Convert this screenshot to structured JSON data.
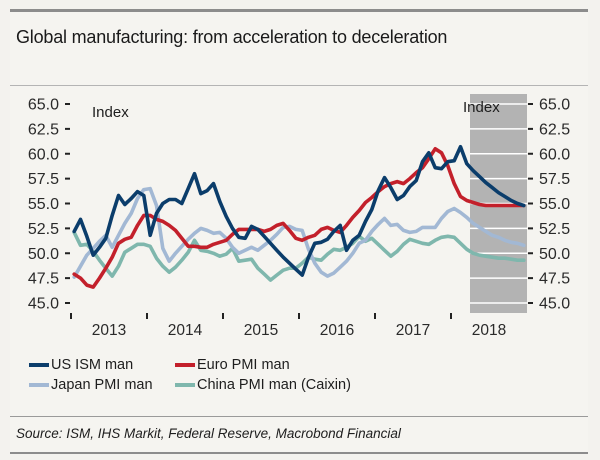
{
  "header": {
    "title": "Global manufacturing: from acceleration to deceleration"
  },
  "source": "Source: ISM, IHS Markit, Federal Reserve, Macrobond Financial",
  "colors": {
    "us_ism": "#0b3d6b",
    "euro_pmi": "#c3202b",
    "japan_pmi": "#a2b8d4",
    "china_pmi": "#7fb7ad",
    "shading": "#b3b3b3",
    "gridline": "#ffffff",
    "background": "#f5f4f0"
  },
  "chart_data": {
    "type": "line",
    "title": "Global manufacturing: from acceleration to deceleration",
    "frequency": "monthly",
    "x_start": "2013-01",
    "x_end": "2018-12",
    "xtick_labels": [
      "2013",
      "2014",
      "2015",
      "2016",
      "2017",
      "2018"
    ],
    "xlabel": "",
    "y_left_label": "Index",
    "y_right_label": "Index",
    "ylim": [
      45,
      65
    ],
    "yticks": [
      65.0,
      62.5,
      60.0,
      57.5,
      55.0,
      52.5,
      50.0,
      47.5,
      45.0
    ],
    "ytick_labels": [
      "65.0",
      "62.5",
      "60.0",
      "57.5",
      "55.0",
      "52.5",
      "50.0",
      "47.5",
      "45.0"
    ],
    "grid": false,
    "shaded_period": {
      "start": "2018-04",
      "end": "2018-12"
    },
    "legend_position": "bottom-left",
    "series": [
      {
        "name": "US ISM man",
        "color": "#0b3d6b",
        "values": [
          52.2,
          53.4,
          51.7,
          49.8,
          50.6,
          51.5,
          53.8,
          55.8,
          54.9,
          55.5,
          56.2,
          55.8,
          51.8,
          54.0,
          55.0,
          55.4,
          55.4,
          55.0,
          56.5,
          58.0,
          56.0,
          56.3,
          57.0,
          55.2,
          53.7,
          52.5,
          51.6,
          51.5,
          52.7,
          52.4,
          51.7,
          51.0,
          50.3,
          49.6,
          49.0,
          48.4,
          47.8,
          49.6,
          51.0,
          51.1,
          51.4,
          52.2,
          52.8,
          50.3,
          51.3,
          51.8,
          53.2,
          54.4,
          56.3,
          57.6,
          56.6,
          55.4,
          55.8,
          56.7,
          57.3,
          59.2,
          60.1,
          58.6,
          58.5,
          59.2,
          59.3,
          60.7,
          59.0,
          58.3,
          57.7,
          57.1,
          56.6,
          56.1,
          55.7,
          55.3,
          55.0,
          54.8
        ]
      },
      {
        "name": "Euro PMI man",
        "color": "#c3202b",
        "values": [
          47.9,
          47.5,
          46.8,
          46.6,
          47.5,
          48.5,
          49.6,
          51.0,
          51.4,
          51.6,
          52.8,
          53.8,
          53.8,
          53.4,
          53.2,
          52.8,
          52.3,
          51.5,
          50.7,
          50.7,
          50.6,
          50.6,
          50.9,
          51.1,
          51.3,
          51.9,
          52.4,
          52.4,
          52.4,
          52.4,
          52.2,
          52.4,
          52.8,
          53.0,
          52.3,
          51.5,
          51.3,
          51.6,
          51.8,
          52.4,
          52.6,
          52.3,
          52.1,
          52.8,
          53.6,
          54.3,
          55.1,
          55.6,
          56.2,
          56.7,
          57.0,
          57.2,
          57.0,
          57.5,
          58.1,
          58.6,
          59.5,
          60.5,
          60.1,
          58.8,
          57.0,
          55.7,
          55.3,
          55.1,
          54.9,
          54.8,
          54.8,
          54.8,
          54.8,
          54.8,
          54.8,
          54.8
        ]
      },
      {
        "name": "Japan PMI man",
        "color": "#a2b8d4",
        "values": [
          47.6,
          48.7,
          49.8,
          50.5,
          51.2,
          51.8,
          50.6,
          51.8,
          53.0,
          54.0,
          55.5,
          56.4,
          56.5,
          54.8,
          50.5,
          49.2,
          50.0,
          50.7,
          51.4,
          52.0,
          52.5,
          52.3,
          52.0,
          52.1,
          51.5,
          50.6,
          50.0,
          50.3,
          50.6,
          50.3,
          50.8,
          51.3,
          51.9,
          52.6,
          52.7,
          52.4,
          52.3,
          50.4,
          49.0,
          48.1,
          47.7,
          48.0,
          48.6,
          49.2,
          50.0,
          51.0,
          51.3,
          52.2,
          52.9,
          53.5,
          52.8,
          52.9,
          52.3,
          52.1,
          52.2,
          52.6,
          52.6,
          52.6,
          53.5,
          54.2,
          54.5,
          54.1,
          53.6,
          53.0,
          52.6,
          52.2,
          51.8,
          51.6,
          51.3,
          51.1,
          51.0,
          50.8
        ]
      },
      {
        "name": "China PMI man (Caixin)",
        "color": "#7fb7ad",
        "values": [
          52.1,
          50.8,
          50.9,
          50.2,
          49.3,
          48.5,
          47.7,
          48.7,
          50.1,
          50.5,
          50.9,
          50.9,
          50.7,
          49.5,
          48.7,
          48.1,
          48.6,
          49.3,
          50.1,
          51.3,
          50.3,
          50.2,
          50.0,
          49.7,
          49.9,
          50.5,
          49.2,
          49.3,
          49.4,
          48.5,
          47.9,
          47.3,
          47.8,
          48.3,
          48.5,
          48.5,
          49.0,
          49.6,
          49.4,
          49.3,
          49.9,
          50.4,
          50.3,
          50.6,
          51.0,
          51.7,
          51.2,
          51.5,
          50.9,
          50.3,
          49.7,
          50.2,
          50.9,
          51.4,
          51.2,
          51.0,
          50.9,
          51.3,
          51.6,
          51.7,
          51.6,
          51.0,
          50.4,
          50.0,
          49.8,
          49.7,
          49.6,
          49.5,
          49.5,
          49.4,
          49.3,
          49.3
        ]
      }
    ]
  }
}
